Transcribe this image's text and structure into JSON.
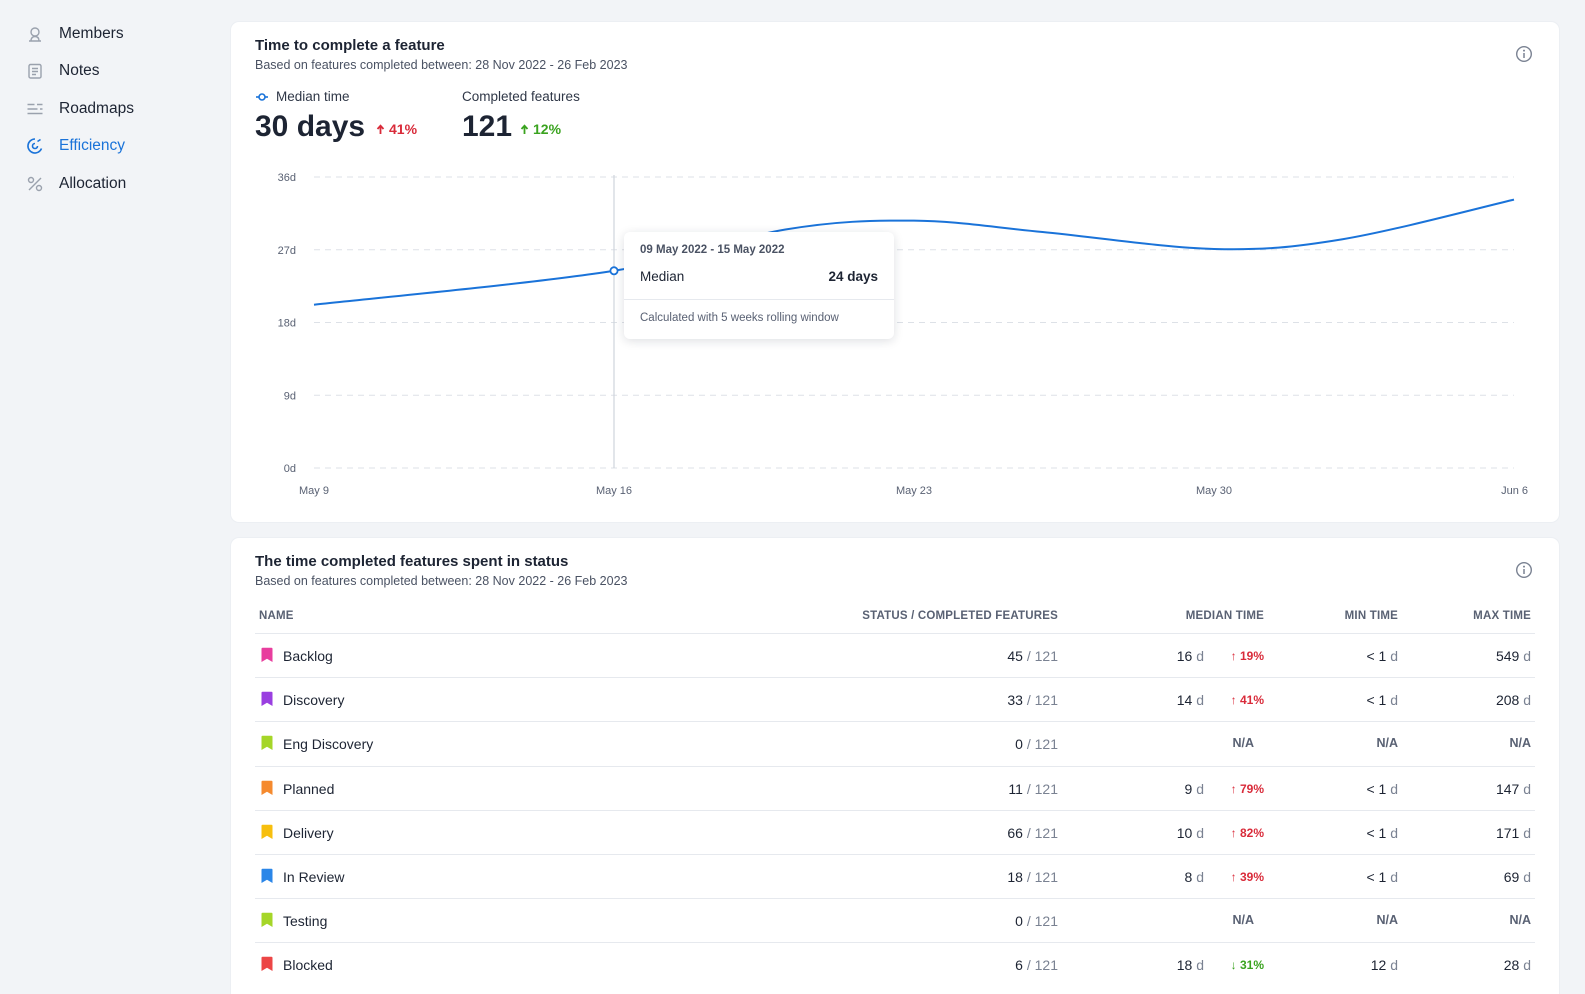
{
  "sidebar": {
    "items": [
      {
        "label": "Members",
        "icon": "members-icon"
      },
      {
        "label": "Notes",
        "icon": "notes-icon"
      },
      {
        "label": "Roadmaps",
        "icon": "roadmaps-icon"
      },
      {
        "label": "Efficiency",
        "icon": "efficiency-icon",
        "active": true
      },
      {
        "label": "Allocation",
        "icon": "allocation-icon"
      }
    ]
  },
  "feature_card": {
    "title": "Time to complete a feature",
    "subtitle": "Based on features completed between: 28 Nov 2022 - 26 Feb 2023",
    "median": {
      "label": "Median time",
      "value": "30 days",
      "delta": "41%"
    },
    "completed": {
      "label": "Completed features",
      "value": "121",
      "delta": "12%"
    },
    "tooltip": {
      "date_range": "09 May 2022 - 15 May 2022",
      "label": "Median",
      "value": "24 days",
      "note": "Calculated with 5 weeks rolling window"
    }
  },
  "chart_data": {
    "type": "line",
    "title": "",
    "xlabel": "",
    "ylabel": "",
    "y_ticks": [
      "0d",
      "9d",
      "18d",
      "27d",
      "36d"
    ],
    "ylim": [
      0,
      36
    ],
    "x_ticks": [
      "May 9",
      "May 16",
      "May 23",
      "May 30",
      "Jun 6"
    ],
    "x": [
      "2022-05-09",
      "2022-05-16",
      "2022-05-20",
      "2022-05-23",
      "2022-05-26",
      "2022-05-30",
      "2022-06-02",
      "2022-06-06"
    ],
    "series": [
      {
        "name": "Median time",
        "color": "#1a73d9",
        "values": [
          20.2,
          24.4,
          29.5,
          30.6,
          29.2,
          27.1,
          28.3,
          33.2
        ]
      }
    ],
    "highlight_index": 1,
    "grid": true
  },
  "status_card": {
    "title": "The time completed features spent in status",
    "subtitle": "Based on features completed between: 28 Nov 2022 - 26 Feb 2023",
    "columns": {
      "name": "NAME",
      "status": "STATUS / COMPLETED FEATURES",
      "median": "MEDIAN TIME",
      "min": "MIN TIME",
      "max": "MAX TIME"
    },
    "rows": [
      {
        "name": "Backlog",
        "color": "#e83e9e",
        "count": "45",
        "total": "/ 121",
        "median": "16",
        "median_unit": "d",
        "delta": "19%",
        "delta_dir": "up",
        "min": "< 1",
        "min_unit": "d",
        "max": "549",
        "max_unit": "d"
      },
      {
        "name": "Discovery",
        "color": "#9a3fe0",
        "count": "33",
        "total": "/ 121",
        "median": "14",
        "median_unit": "d",
        "delta": "41%",
        "delta_dir": "up",
        "min": "< 1",
        "min_unit": "d",
        "max": "208",
        "max_unit": "d"
      },
      {
        "name": "Eng Discovery",
        "color": "#a5d628",
        "count": "0",
        "total": "/ 121",
        "median": "N/A",
        "median_unit": "",
        "delta": "",
        "delta_dir": "",
        "min": "N/A",
        "min_unit": "",
        "max": "N/A",
        "max_unit": ""
      },
      {
        "name": "Planned",
        "color": "#f58a2e",
        "count": "11",
        "total": "/ 121",
        "median": "9",
        "median_unit": "d",
        "delta": "79%",
        "delta_dir": "up",
        "min": "< 1",
        "min_unit": "d",
        "max": "147",
        "max_unit": "d"
      },
      {
        "name": "Delivery",
        "color": "#f7bf0e",
        "count": "66",
        "total": "/ 121",
        "median": "10",
        "median_unit": "d",
        "delta": "82%",
        "delta_dir": "up",
        "min": "< 1",
        "min_unit": "d",
        "max": "171",
        "max_unit": "d"
      },
      {
        "name": "In Review",
        "color": "#2a86e8",
        "count": "18",
        "total": "/ 121",
        "median": "8",
        "median_unit": "d",
        "delta": "39%",
        "delta_dir": "up",
        "min": "< 1",
        "min_unit": "d",
        "max": "69",
        "max_unit": "d"
      },
      {
        "name": "Testing",
        "color": "#a5d628",
        "count": "0",
        "total": "/ 121",
        "median": "N/A",
        "median_unit": "",
        "delta": "",
        "delta_dir": "",
        "min": "N/A",
        "min_unit": "",
        "max": "N/A",
        "max_unit": ""
      },
      {
        "name": "Blocked",
        "color": "#ec4646",
        "count": "6",
        "total": "/ 121",
        "median": "18",
        "median_unit": "d",
        "delta": "31%",
        "delta_dir": "down",
        "min": "12",
        "min_unit": "d",
        "max": "28",
        "max_unit": "d"
      }
    ]
  }
}
